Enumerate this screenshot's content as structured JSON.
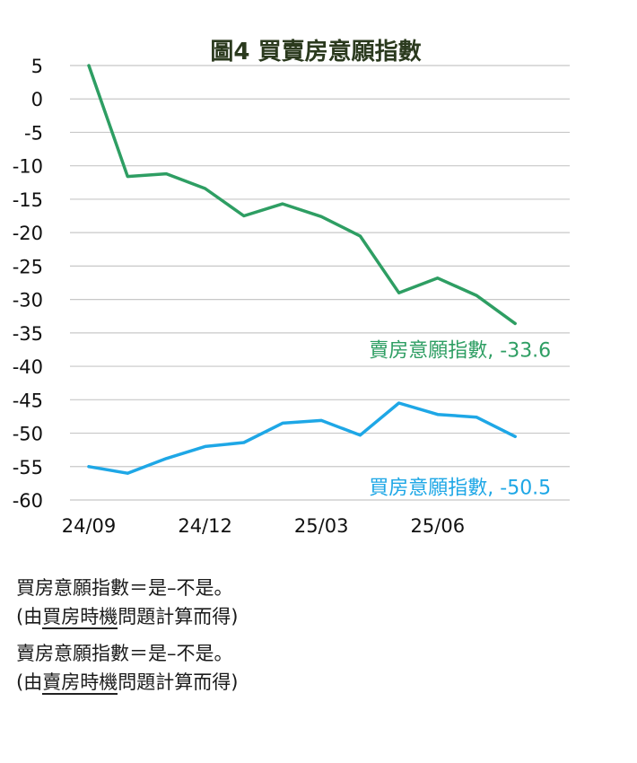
{
  "chart_data": {
    "type": "line",
    "title": "圖4  買賣房意願指數",
    "xlabel": "",
    "ylabel": "",
    "ylim": [
      -60,
      5
    ],
    "yticks": [
      "5",
      "0",
      "-5",
      "-10",
      "-15",
      "-20",
      "-25",
      "-30",
      "-35",
      "-40",
      "-45",
      "-50",
      "-55",
      "-60"
    ],
    "x": [
      "24/09",
      "24/10",
      "24/11",
      "24/12",
      "25/01",
      "25/02",
      "25/03",
      "25/04",
      "25/05",
      "25/06",
      "25/07",
      "25/08"
    ],
    "xtick_labels": [
      "24/09",
      "24/12",
      "25/03",
      "25/06"
    ],
    "grid": true,
    "series": [
      {
        "name": "賣房意願指數",
        "color": "#2e9e63",
        "values": [
          5.0,
          -11.6,
          -11.2,
          -13.4,
          -17.5,
          -15.7,
          -17.6,
          -20.5,
          -29.0,
          -26.8,
          -29.4,
          -33.6
        ],
        "end_label": "賣房意願指數, -33.6"
      },
      {
        "name": "買房意願指數",
        "color": "#1ea7e6",
        "values": [
          -55.0,
          -56.0,
          -53.8,
          -52.0,
          -51.4,
          -48.5,
          -48.1,
          -50.3,
          -45.5,
          -47.2,
          -47.6,
          -50.5
        ],
        "end_label": "買房意願指數, -50.5"
      }
    ]
  },
  "notes": {
    "buy_formula": "買房意願指數＝是–不是。",
    "buy_source_prefix": "(由",
    "buy_source_underline": "買房時機",
    "buy_source_suffix": "問題計算而得)",
    "sell_formula": "賣房意願指數＝是–不是。",
    "sell_source_prefix": "(由",
    "sell_source_underline": "賣房時機",
    "sell_source_suffix": "問題計算而得)"
  }
}
